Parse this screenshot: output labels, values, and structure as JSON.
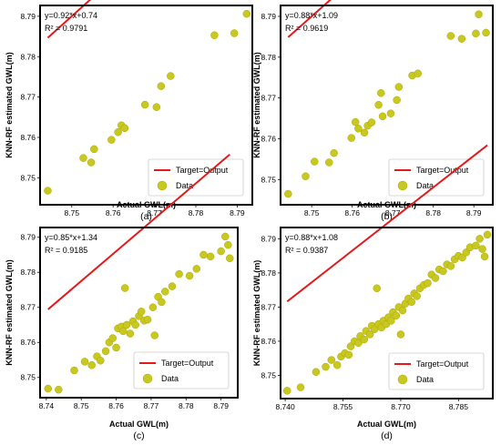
{
  "figure": {
    "legend_target_label": "Target=Output",
    "legend_data_label": "Data",
    "colors": {
      "fit_line": "#e31a1c",
      "points": "#c8c820",
      "point_edge": "#a8a800",
      "frame": "#000000",
      "background": "#ffffff"
    }
  },
  "chart_data": [
    {
      "type": "scatter",
      "caption": "(a)",
      "equation": "y=0.92*x+0.74",
      "r2": "R² = 0.9791",
      "xlabel": "Actual GWL(m)",
      "ylabel": "KNN-RF estimated GWL(m)",
      "xlim": [
        8.743,
        8.793
      ],
      "ylim": [
        8.744,
        8.792
      ],
      "xticks": [
        8.75,
        8.76,
        8.77,
        8.78,
        8.79
      ],
      "xtick_labels": [
        "8.75",
        "8.76",
        "8.77",
        "8.78",
        "8.79"
      ],
      "yticks": [
        8.75,
        8.76,
        8.77,
        8.78,
        8.79
      ],
      "ytick_labels": [
        "8.75",
        "8.76",
        "8.77",
        "8.78",
        "8.79"
      ],
      "fit_line": {
        "slope": 0.92,
        "intercept": 0.74,
        "x_range": [
          8.7442,
          8.7925
        ]
      },
      "legend_position": "lower-right",
      "points": [
        {
          "x": 8.7442,
          "y": 8.7468
        },
        {
          "x": 8.7528,
          "y": 8.7549
        },
        {
          "x": 8.7547,
          "y": 8.7538
        },
        {
          "x": 8.7554,
          "y": 8.7571
        },
        {
          "x": 8.7596,
          "y": 8.7594
        },
        {
          "x": 8.7612,
          "y": 8.7613
        },
        {
          "x": 8.762,
          "y": 8.763
        },
        {
          "x": 8.7628,
          "y": 8.7623
        },
        {
          "x": 8.7677,
          "y": 8.7681
        },
        {
          "x": 8.7705,
          "y": 8.7675
        },
        {
          "x": 8.7716,
          "y": 8.7727
        },
        {
          "x": 8.7739,
          "y": 8.7752
        },
        {
          "x": 8.7845,
          "y": 8.7853
        },
        {
          "x": 8.7893,
          "y": 8.7858
        },
        {
          "x": 8.7923,
          "y": 8.7906
        }
      ]
    },
    {
      "type": "scatter",
      "caption": "(b)",
      "equation": "y=0.88*x+1.09",
      "r2": "R² = 0.9619",
      "xlabel": "Actual GWL(m)",
      "ylabel": "KNN-RF estimated GWL(m)",
      "xlim": [
        8.743,
        8.794
      ],
      "ylim": [
        8.7445,
        8.792
      ],
      "xticks": [
        8.75,
        8.76,
        8.77,
        8.78,
        8.79
      ],
      "xtick_labels": [
        "8.75",
        "8.76",
        "8.77",
        "8.78",
        "8.79"
      ],
      "yticks": [
        8.75,
        8.76,
        8.77,
        8.78,
        8.79
      ],
      "ytick_labels": [
        "8.75",
        "8.76",
        "8.77",
        "8.78",
        "8.79"
      ],
      "fit_line": {
        "slope": 0.88,
        "intercept": 1.09,
        "x_range": [
          8.7442,
          8.7935
        ]
      },
      "legend_position": "lower-right",
      "points": [
        {
          "x": 8.7442,
          "y": 8.7465
        },
        {
          "x": 8.7485,
          "y": 8.7508
        },
        {
          "x": 8.7507,
          "y": 8.7544
        },
        {
          "x": 8.7543,
          "y": 8.7542
        },
        {
          "x": 8.7555,
          "y": 8.7565
        },
        {
          "x": 8.7598,
          "y": 8.7602
        },
        {
          "x": 8.7608,
          "y": 8.7641
        },
        {
          "x": 8.7615,
          "y": 8.7625
        },
        {
          "x": 8.763,
          "y": 8.7615
        },
        {
          "x": 8.7638,
          "y": 8.7632
        },
        {
          "x": 8.7648,
          "y": 8.764
        },
        {
          "x": 8.7665,
          "y": 8.7683
        },
        {
          "x": 8.7671,
          "y": 8.7712
        },
        {
          "x": 8.7675,
          "y": 8.7655
        },
        {
          "x": 8.7695,
          "y": 8.7662
        },
        {
          "x": 8.771,
          "y": 8.7695
        },
        {
          "x": 8.7715,
          "y": 8.7727
        },
        {
          "x": 8.7748,
          "y": 8.7755
        },
        {
          "x": 8.7762,
          "y": 8.776
        },
        {
          "x": 8.7843,
          "y": 8.7852
        },
        {
          "x": 8.787,
          "y": 8.7845
        },
        {
          "x": 8.7905,
          "y": 8.7858
        },
        {
          "x": 8.7912,
          "y": 8.7905
        },
        {
          "x": 8.793,
          "y": 8.786
        }
      ]
    },
    {
      "type": "scatter",
      "caption": "(c)",
      "equation": "y=0.85*x+1.34",
      "r2": "R² = 0.9185",
      "xlabel": "Actual GWL(m)",
      "ylabel": "KNN-RF estimated GWL(m)",
      "xlim": [
        8.739,
        8.794
      ],
      "ylim": [
        8.745,
        8.792
      ],
      "xticks": [
        8.74,
        8.75,
        8.76,
        8.77,
        8.78,
        8.79
      ],
      "xtick_labels": [
        "8.74",
        "8.75",
        "8.76",
        "8.77",
        "8.78",
        "8.79"
      ],
      "yticks": [
        8.75,
        8.76,
        8.77,
        8.78,
        8.79
      ],
      "ytick_labels": [
        "8.75",
        "8.76",
        "8.77",
        "8.78",
        "8.79"
      ],
      "fit_line": {
        "slope": 0.85,
        "intercept": 1.34,
        "x_range": [
          8.7405,
          8.7925
        ]
      },
      "legend_position": "lower-right",
      "points": [
        {
          "x": 8.7405,
          "y": 8.7468
        },
        {
          "x": 8.7435,
          "y": 8.7465
        },
        {
          "x": 8.748,
          "y": 8.752
        },
        {
          "x": 8.751,
          "y": 8.7545
        },
        {
          "x": 8.753,
          "y": 8.7535
        },
        {
          "x": 8.7545,
          "y": 8.756
        },
        {
          "x": 8.7555,
          "y": 8.7548
        },
        {
          "x": 8.757,
          "y": 8.7575
        },
        {
          "x": 8.758,
          "y": 8.76
        },
        {
          "x": 8.759,
          "y": 8.7612
        },
        {
          "x": 8.76,
          "y": 8.7585
        },
        {
          "x": 8.7605,
          "y": 8.764
        },
        {
          "x": 8.7615,
          "y": 8.7645
        },
        {
          "x": 8.762,
          "y": 8.7632
        },
        {
          "x": 8.7625,
          "y": 8.7755
        },
        {
          "x": 8.763,
          "y": 8.765
        },
        {
          "x": 8.764,
          "y": 8.7625
        },
        {
          "x": 8.7648,
          "y": 8.766
        },
        {
          "x": 8.7655,
          "y": 8.765
        },
        {
          "x": 8.7665,
          "y": 8.7675
        },
        {
          "x": 8.7672,
          "y": 8.7688
        },
        {
          "x": 8.768,
          "y": 8.7662
        },
        {
          "x": 8.769,
          "y": 8.7665
        },
        {
          "x": 8.7705,
          "y": 8.77
        },
        {
          "x": 8.771,
          "y": 8.762
        },
        {
          "x": 8.772,
          "y": 8.773
        },
        {
          "x": 8.773,
          "y": 8.7715
        },
        {
          "x": 8.774,
          "y": 8.7745
        },
        {
          "x": 8.776,
          "y": 8.776
        },
        {
          "x": 8.778,
          "y": 8.7795
        },
        {
          "x": 8.781,
          "y": 8.779
        },
        {
          "x": 8.783,
          "y": 8.781
        },
        {
          "x": 8.785,
          "y": 8.785
        },
        {
          "x": 8.787,
          "y": 8.7845
        },
        {
          "x": 8.79,
          "y": 8.786
        },
        {
          "x": 8.7912,
          "y": 8.7902
        },
        {
          "x": 8.792,
          "y": 8.7878
        },
        {
          "x": 8.7925,
          "y": 8.784
        }
      ]
    },
    {
      "type": "scatter",
      "caption": "(d)",
      "equation": "y=0.88*x+1.08",
      "r2": "R² = 0.9387",
      "xlabel": "Actual GWL(m)",
      "ylabel": "KNN-RF estimated GWL(m)",
      "xlim": [
        8.7395,
        8.7932
      ],
      "ylim": [
        8.744,
        8.7925
      ],
      "xticks": [
        8.74,
        8.755,
        8.77,
        8.785
      ],
      "xtick_labels": [
        "8.740",
        "8.755",
        "8.770",
        "8.785"
      ],
      "yticks": [
        8.75,
        8.76,
        8.77,
        8.78,
        8.79
      ],
      "ytick_labels": [
        "8.75",
        "8.76",
        "8.77",
        "8.78",
        "8.79"
      ],
      "fit_line": {
        "slope": 0.88,
        "intercept": 1.08,
        "x_range": [
          8.7405,
          8.7925
        ]
      },
      "legend_position": "lower-right",
      "points": [
        {
          "x": 8.7405,
          "y": 8.7455
        },
        {
          "x": 8.744,
          "y": 8.7465
        },
        {
          "x": 8.748,
          "y": 8.751
        },
        {
          "x": 8.7505,
          "y": 8.7525
        },
        {
          "x": 8.752,
          "y": 8.7545
        },
        {
          "x": 8.7535,
          "y": 8.753
        },
        {
          "x": 8.7545,
          "y": 8.7555
        },
        {
          "x": 8.7555,
          "y": 8.7565
        },
        {
          "x": 8.7565,
          "y": 8.756
        },
        {
          "x": 8.757,
          "y": 8.7585
        },
        {
          "x": 8.758,
          "y": 8.76
        },
        {
          "x": 8.759,
          "y": 8.7595
        },
        {
          "x": 8.7595,
          "y": 8.7615
        },
        {
          "x": 8.7605,
          "y": 8.7605
        },
        {
          "x": 8.761,
          "y": 8.763
        },
        {
          "x": 8.762,
          "y": 8.762
        },
        {
          "x": 8.7625,
          "y": 8.7645
        },
        {
          "x": 8.7632,
          "y": 8.7635
        },
        {
          "x": 8.7638,
          "y": 8.7755
        },
        {
          "x": 8.7642,
          "y": 8.765
        },
        {
          "x": 8.765,
          "y": 8.764
        },
        {
          "x": 8.7655,
          "y": 8.766
        },
        {
          "x": 8.7662,
          "y": 8.765
        },
        {
          "x": 8.7668,
          "y": 8.767
        },
        {
          "x": 8.7675,
          "y": 8.766
        },
        {
          "x": 8.768,
          "y": 8.7685
        },
        {
          "x": 8.7688,
          "y": 8.7675
        },
        {
          "x": 8.7695,
          "y": 8.77
        },
        {
          "x": 8.77,
          "y": 8.762
        },
        {
          "x": 8.7705,
          "y": 8.769
        },
        {
          "x": 8.7712,
          "y": 8.771
        },
        {
          "x": 8.772,
          "y": 8.7725
        },
        {
          "x": 8.7728,
          "y": 8.7715
        },
        {
          "x": 8.7735,
          "y": 8.774
        },
        {
          "x": 8.7742,
          "y": 8.7732
        },
        {
          "x": 8.775,
          "y": 8.7755
        },
        {
          "x": 8.776,
          "y": 8.7765
        },
        {
          "x": 8.777,
          "y": 8.777
        },
        {
          "x": 8.778,
          "y": 8.7795
        },
        {
          "x": 8.779,
          "y": 8.7785
        },
        {
          "x": 8.78,
          "y": 8.781
        },
        {
          "x": 8.781,
          "y": 8.7805
        },
        {
          "x": 8.782,
          "y": 8.7825
        },
        {
          "x": 8.783,
          "y": 8.782
        },
        {
          "x": 8.784,
          "y": 8.784
        },
        {
          "x": 8.785,
          "y": 8.785
        },
        {
          "x": 8.786,
          "y": 8.7845
        },
        {
          "x": 8.787,
          "y": 8.786
        },
        {
          "x": 8.788,
          "y": 8.7875
        },
        {
          "x": 8.7895,
          "y": 8.788
        },
        {
          "x": 8.7905,
          "y": 8.79
        },
        {
          "x": 8.7912,
          "y": 8.787
        },
        {
          "x": 8.7918,
          "y": 8.7848
        },
        {
          "x": 8.7925,
          "y": 8.7912
        }
      ]
    }
  ]
}
